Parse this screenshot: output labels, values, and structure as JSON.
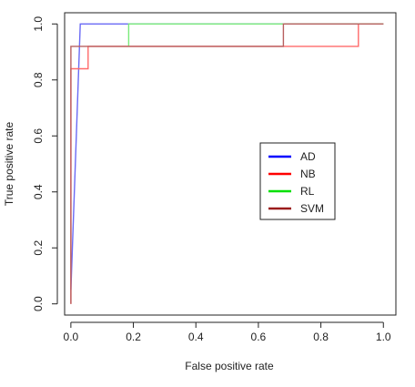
{
  "chart_data": {
    "type": "line",
    "title": "",
    "xlabel": "False positive rate",
    "ylabel": "True positive rate",
    "xlim": [
      -0.02,
      1.04
    ],
    "ylim": [
      -0.04,
      1.04
    ],
    "xticks": [
      "0.0",
      "0.2",
      "0.4",
      "0.6",
      "0.8",
      "1.0"
    ],
    "yticks": [
      "0.0",
      "0.2",
      "0.4",
      "0.6",
      "0.8",
      "1.0"
    ],
    "legend_position": "center-right",
    "grid": false,
    "series": [
      {
        "name": "AD",
        "color": "#6a6af5",
        "legend_color": "#0000ff",
        "x": [
          0.0,
          0.03,
          0.03,
          1.0
        ],
        "y": [
          0.05,
          1.0,
          1.0,
          1.0
        ]
      },
      {
        "name": "NB",
        "color": "#ff6a6a",
        "legend_color": "#ff0000",
        "x": [
          0.0,
          0.0,
          0.0,
          0.055,
          0.055,
          0.92,
          0.92,
          1.0
        ],
        "y": [
          0.0,
          0.84,
          0.84,
          0.84,
          0.92,
          0.92,
          1.0,
          1.0
        ]
      },
      {
        "name": "RL",
        "color": "#7aea7a",
        "legend_color": "#00e000",
        "x": [
          0.185,
          0.185,
          1.0
        ],
        "y": [
          0.92,
          1.0,
          1.0
        ]
      },
      {
        "name": "SVM",
        "color": "#b86060",
        "legend_color": "#9b1c1c",
        "x": [
          0.0,
          0.0,
          0.0,
          0.68,
          0.68,
          1.0
        ],
        "y": [
          0.0,
          0.92,
          0.92,
          0.92,
          1.0,
          1.0
        ]
      }
    ]
  }
}
